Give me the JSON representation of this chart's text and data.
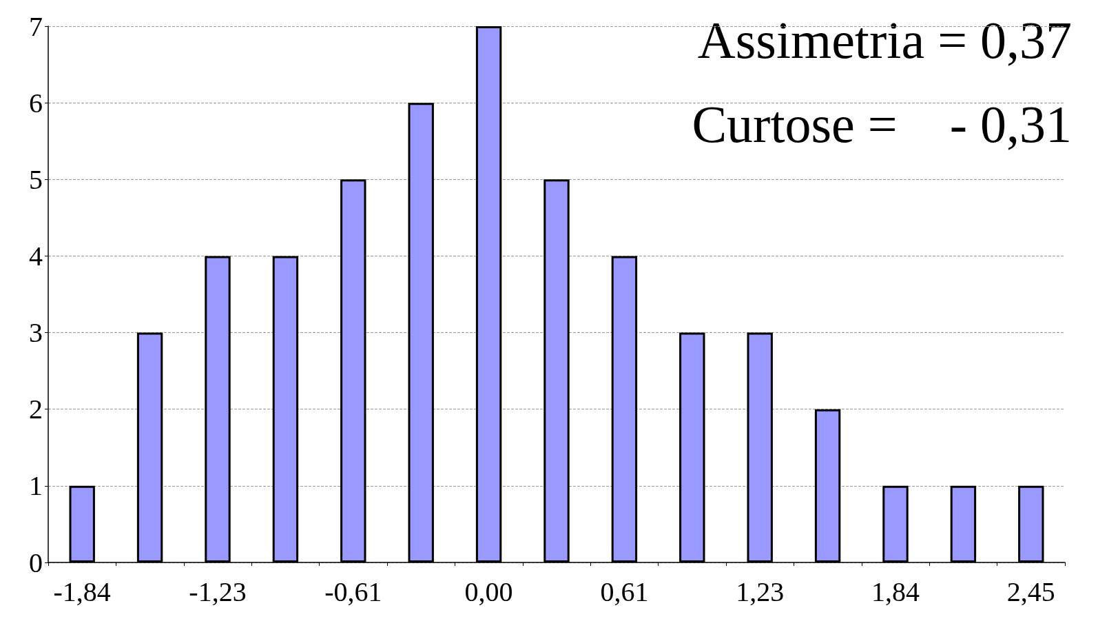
{
  "chart_data": {
    "type": "bar",
    "categories": [
      "-1,84",
      null,
      "-1,23",
      null,
      "-0,61",
      null,
      "0,00",
      null,
      "0,61",
      null,
      "1,23",
      null,
      "1,84",
      null,
      "2,45"
    ],
    "values": [
      1,
      3,
      4,
      4,
      5,
      6,
      7,
      5,
      4,
      3,
      3,
      2,
      1,
      1,
      1
    ],
    "color": "#9999ff",
    "ylim": [
      0,
      7
    ],
    "yticks": [
      0,
      1,
      2,
      3,
      4,
      5,
      6,
      7
    ],
    "grid": "y",
    "annotations": [
      "Assimetria = 0,37",
      "Curtose =    - 0,31"
    ]
  }
}
